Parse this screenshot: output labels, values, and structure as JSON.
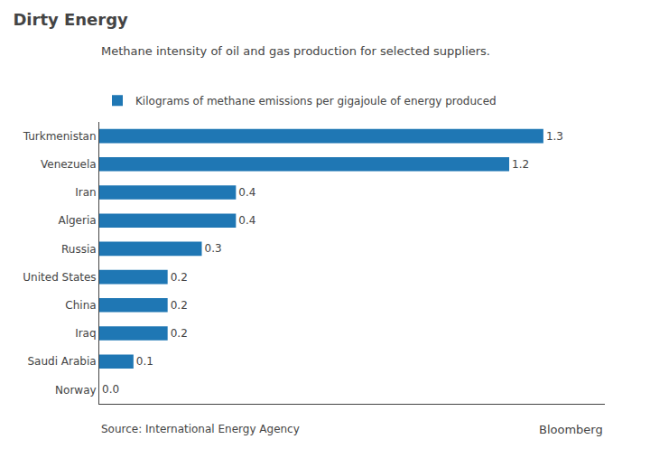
{
  "chart_data": {
    "type": "bar",
    "orientation": "horizontal",
    "title": "Dirty Energy",
    "subtitle": "Methane intensity of oil and gas production for selected suppliers.",
    "categories": [
      "Turkmenistan",
      "Venezuela",
      "Iran",
      "Algeria",
      "Russia",
      "United States",
      "China",
      "Iraq",
      "Saudi Arabia",
      "Norway"
    ],
    "series": [
      {
        "name": "Kilograms of methane emissions per gigajoule of energy produced",
        "values": [
          1.3,
          1.2,
          0.4,
          0.4,
          0.3,
          0.2,
          0.2,
          0.2,
          0.1,
          0.0
        ],
        "value_labels": [
          "1.3",
          "1.2",
          "0.4",
          "0.4",
          "0.3",
          "0.2",
          "0.2",
          "0.2",
          "0.1",
          "0.0"
        ]
      }
    ],
    "xlim": [
      0,
      1.48
    ],
    "data_labels": true,
    "tick_labels": "y",
    "grid": false,
    "legend": "top left",
    "annotations": [
      "Source: International Energy Agency",
      "Bloomberg"
    ]
  }
}
